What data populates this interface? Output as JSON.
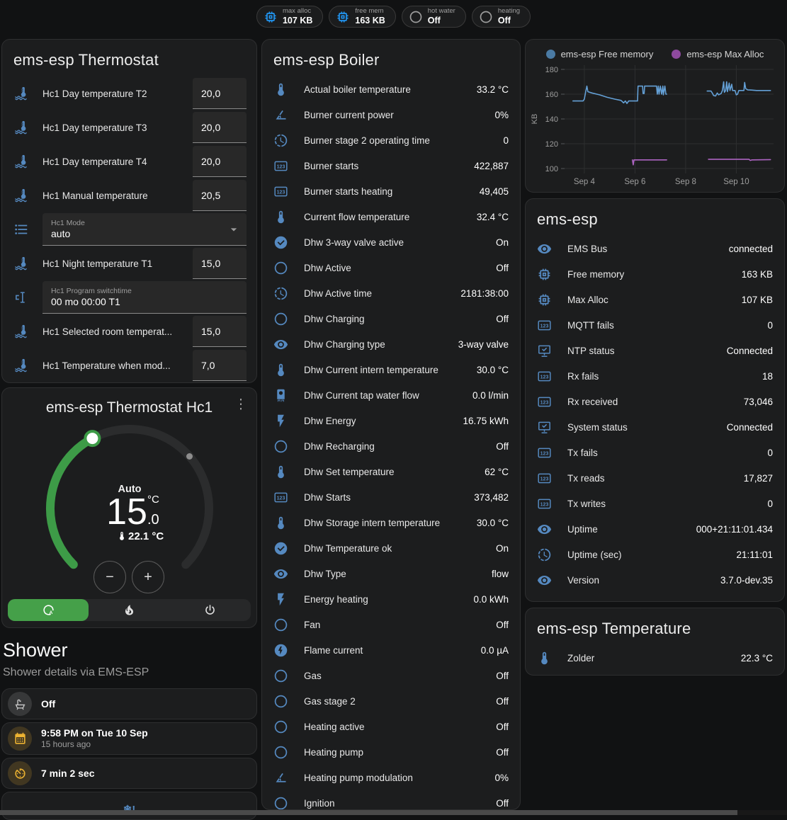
{
  "colors": {
    "icon_blue": "#5589c0",
    "badge_blue": "#2196f3",
    "badge_gray": "#9e9e9e",
    "accent_green": "#45a049",
    "amber": "#edb332",
    "free_memory_line": "#64a0d6",
    "free_memory_dot": "#4a7aa3",
    "max_alloc_line": "#ad64c2",
    "max_alloc_dot": "#8e4a9e"
  },
  "badges": [
    {
      "label": "max alloc",
      "value": "107 KB",
      "icon": "chip",
      "color": "#2196f3"
    },
    {
      "label": "free mem",
      "value": "163 KB",
      "icon": "chip",
      "color": "#2196f3"
    },
    {
      "label": "hot water",
      "value": "Off",
      "icon": "circle",
      "color": "#9e9e9e"
    },
    {
      "label": "heating",
      "value": "Off",
      "icon": "circle",
      "color": "#9e9e9e"
    }
  ],
  "thermostat_card": {
    "title": "ems-esp Thermostat",
    "rows": [
      {
        "type": "number",
        "icon": "thermo-waves",
        "label": "Hc1 Day temperature T2",
        "value": "20,0"
      },
      {
        "type": "number",
        "icon": "thermo-waves",
        "label": "Hc1 Day temperature T3",
        "value": "20,0"
      },
      {
        "type": "number",
        "icon": "thermo-waves",
        "label": "Hc1 Day temperature T4",
        "value": "20,0"
      },
      {
        "type": "number",
        "icon": "thermo-waves",
        "label": "Hc1 Manual temperature",
        "value": "20,5"
      },
      {
        "type": "select",
        "icon": "list",
        "label": "Hc1 Mode",
        "value": "auto"
      },
      {
        "type": "number",
        "icon": "thermo-waves",
        "label": "Hc1 Night temperature T1",
        "value": "15,0"
      },
      {
        "type": "text",
        "icon": "cursor",
        "label": "Hc1 Program switchtime",
        "value": "00 mo 00:00 T1"
      },
      {
        "type": "number",
        "icon": "thermo-waves",
        "label": "Hc1 Selected room temperat...",
        "value": "15,0"
      },
      {
        "type": "number",
        "icon": "thermo-waves",
        "label": "Hc1 Temperature when mod...",
        "value": "7,0"
      }
    ]
  },
  "dial_card": {
    "title": "ems-esp Thermostat Hc1",
    "mode_label": "Auto",
    "target_whole": "15",
    "target_fraction": ".0",
    "unit": "°C",
    "current_temperature": "22.1 °C",
    "minus_label": "−",
    "plus_label": "+",
    "active_mode": "auto"
  },
  "shower": {
    "title": "Shower",
    "subtitle": "Shower details via EMS-ESP",
    "tiles": [
      {
        "icon": "bath",
        "style": "gray",
        "value": "Off"
      },
      {
        "icon": "calendar",
        "style": "amber",
        "value": "9:58 PM on Tue 10 Sep",
        "secondary": "15 hours ago"
      },
      {
        "icon": "timer",
        "style": "amber",
        "value": "7 min 2 sec"
      }
    ],
    "partial_tile_icon_text": "❄!"
  },
  "boiler_card": {
    "title": "ems-esp Boiler",
    "rows": [
      {
        "icon": "thermometer",
        "label": "Actual boiler temperature",
        "value": "33.2 °C"
      },
      {
        "icon": "angle",
        "label": "Burner current power",
        "value": "0%"
      },
      {
        "icon": "clock",
        "label": "Burner stage 2 operating time",
        "value": "0"
      },
      {
        "icon": "counter",
        "label": "Burner starts",
        "value": "422,887"
      },
      {
        "icon": "counter",
        "label": "Burner starts heating",
        "value": "49,405"
      },
      {
        "icon": "thermometer",
        "label": "Current flow temperature",
        "value": "32.4 °C"
      },
      {
        "icon": "check-circle",
        "label": "Dhw 3-way valve active",
        "value": "On"
      },
      {
        "icon": "circle",
        "label": "Dhw Active",
        "value": "Off"
      },
      {
        "icon": "clock",
        "label": "Dhw Active time",
        "value": "2181:38:00"
      },
      {
        "icon": "circle",
        "label": "Dhw Charging",
        "value": "Off"
      },
      {
        "icon": "eye",
        "label": "Dhw Charging type",
        "value": "3-way valve"
      },
      {
        "icon": "thermometer",
        "label": "Dhw Current intern temperature",
        "value": "30.0 °C"
      },
      {
        "icon": "boiler",
        "label": "Dhw Current tap water flow",
        "value": "0.0 l/min"
      },
      {
        "icon": "bolt",
        "label": "Dhw Energy",
        "value": "16.75 kWh"
      },
      {
        "icon": "circle",
        "label": "Dhw Recharging",
        "value": "Off"
      },
      {
        "icon": "thermometer",
        "label": "Dhw Set temperature",
        "value": "62 °C"
      },
      {
        "icon": "counter",
        "label": "Dhw Starts",
        "value": "373,482"
      },
      {
        "icon": "thermometer",
        "label": "Dhw Storage intern temperature",
        "value": "30.0 °C"
      },
      {
        "icon": "check-circle",
        "label": "Dhw Temperature ok",
        "value": "On"
      },
      {
        "icon": "eye",
        "label": "Dhw Type",
        "value": "flow"
      },
      {
        "icon": "bolt",
        "label": "Energy heating",
        "value": "0.0 kWh"
      },
      {
        "icon": "circle",
        "label": "Fan",
        "value": "Off"
      },
      {
        "icon": "flash-circle",
        "label": "Flame current",
        "value": "0.0 µA"
      },
      {
        "icon": "circle",
        "label": "Gas",
        "value": "Off"
      },
      {
        "icon": "circle",
        "label": "Gas stage 2",
        "value": "Off"
      },
      {
        "icon": "circle",
        "label": "Heating active",
        "value": "Off"
      },
      {
        "icon": "circle",
        "label": "Heating pump",
        "value": "Off"
      },
      {
        "icon": "angle",
        "label": "Heating pump modulation",
        "value": "0%"
      },
      {
        "icon": "circle",
        "label": "Ignition",
        "value": "Off"
      }
    ]
  },
  "emsesp_card": {
    "title": "ems-esp",
    "rows": [
      {
        "icon": "eye",
        "label": "EMS Bus",
        "value": "connected"
      },
      {
        "icon": "chip",
        "label": "Free memory",
        "value": "163 KB"
      },
      {
        "icon": "chip",
        "label": "Max Alloc",
        "value": "107 KB"
      },
      {
        "icon": "counter",
        "label": "MQTT fails",
        "value": "0"
      },
      {
        "icon": "monitor-check",
        "label": "NTP status",
        "value": "Connected"
      },
      {
        "icon": "counter",
        "label": "Rx fails",
        "value": "18"
      },
      {
        "icon": "counter",
        "label": "Rx received",
        "value": "73,046"
      },
      {
        "icon": "monitor-check",
        "label": "System status",
        "value": "Connected"
      },
      {
        "icon": "counter",
        "label": "Tx fails",
        "value": "0"
      },
      {
        "icon": "counter",
        "label": "Tx reads",
        "value": "17,827"
      },
      {
        "icon": "counter",
        "label": "Tx writes",
        "value": "0"
      },
      {
        "icon": "eye",
        "label": "Uptime",
        "value": "000+21:11:01.434"
      },
      {
        "icon": "clock",
        "label": "Uptime (sec)",
        "value": "21:11:01"
      },
      {
        "icon": "eye",
        "label": "Version",
        "value": "3.7.0-dev.35"
      }
    ]
  },
  "temperature_card": {
    "title": "ems-esp Temperature",
    "rows": [
      {
        "icon": "thermometer",
        "label": "Zolder",
        "value": "22.3 °C"
      }
    ]
  },
  "chart_data": {
    "type": "line",
    "ylabel": "KB",
    "yticks": [
      100,
      120,
      140,
      160,
      180
    ],
    "ylim": [
      100,
      180
    ],
    "xticks": [
      {
        "day": 4,
        "label": "Sep 4"
      },
      {
        "day": 6,
        "label": "Sep 6"
      },
      {
        "day": 8,
        "label": "Sep 8"
      },
      {
        "day": 10,
        "label": "Sep 10"
      }
    ],
    "xlim": [
      3.22,
      11.47
    ],
    "legend_position": "top",
    "grid": true,
    "series": [
      {
        "name": "ems-esp Free memory",
        "color": "#64a0d6",
        "dot": "#4a7aa3",
        "segments": [
          [
            [
              3.55,
              154.5
            ],
            [
              3.95,
              154.5
            ],
            [
              4.0,
              156
            ],
            [
              4.06,
              162.5
            ],
            [
              4.1,
              166.5
            ],
            [
              4.14,
              162
            ],
            [
              4.3,
              161
            ],
            [
              4.6,
              159.5
            ],
            [
              4.9,
              157.5
            ],
            [
              5.2,
              156
            ],
            [
              5.45,
              155
            ],
            [
              5.5,
              154
            ],
            [
              5.55,
              153
            ],
            [
              5.62,
              154.5
            ],
            [
              5.68,
              152.5
            ],
            [
              5.75,
              154.5
            ],
            [
              6.1,
              154.5
            ],
            [
              6.12,
              166.5
            ],
            [
              6.3,
              166.5
            ],
            [
              6.32,
              160.5
            ],
            [
              6.36,
              160.5
            ],
            [
              6.38,
              166.5
            ],
            [
              6.85,
              166.5
            ],
            [
              6.88,
              160
            ],
            [
              6.92,
              166.5
            ],
            [
              6.95,
              160
            ],
            [
              7.0,
              166.5
            ],
            [
              7.05,
              160
            ],
            [
              7.1,
              166.5
            ],
            [
              7.12,
              159.5
            ],
            [
              7.18,
              166.5
            ],
            [
              7.22,
              160
            ],
            [
              7.25,
              160
            ]
          ],
          [
            [
              8.85,
              162.5
            ],
            [
              9.0,
              162.5
            ],
            [
              9.05,
              161
            ],
            [
              9.1,
              159
            ],
            [
              9.18,
              158.5
            ],
            [
              9.25,
              161
            ],
            [
              9.3,
              159.5
            ],
            [
              9.4,
              160.5
            ],
            [
              9.45,
              163
            ],
            [
              9.5,
              170
            ],
            [
              9.53,
              161.5
            ],
            [
              9.58,
              163
            ],
            [
              9.62,
              170
            ],
            [
              9.65,
              162
            ],
            [
              9.72,
              169
            ],
            [
              9.75,
              163
            ],
            [
              9.82,
              168
            ],
            [
              9.85,
              163
            ],
            [
              9.95,
              163
            ],
            [
              10.0,
              159.5
            ],
            [
              10.05,
              160
            ],
            [
              10.1,
              163
            ],
            [
              10.3,
              163
            ],
            [
              10.33,
              169.5
            ],
            [
              10.37,
              164.5
            ],
            [
              10.45,
              163.5
            ],
            [
              10.6,
              163.3
            ],
            [
              10.8,
              163
            ],
            [
              11.35,
              163
            ]
          ]
        ]
      },
      {
        "name": "ems-esp Max Alloc",
        "color": "#ad64c2",
        "dot": "#8e4a9e",
        "segments": [
          [
            [
              5.9,
              107
            ],
            [
              5.93,
              103
            ],
            [
              5.96,
              107
            ],
            [
              7.25,
              107
            ]
          ],
          [
            [
              8.9,
              107.5
            ],
            [
              10.5,
              107.5
            ],
            [
              10.55,
              106.5
            ],
            [
              10.62,
              107
            ],
            [
              11.35,
              107.2
            ]
          ]
        ]
      }
    ]
  }
}
